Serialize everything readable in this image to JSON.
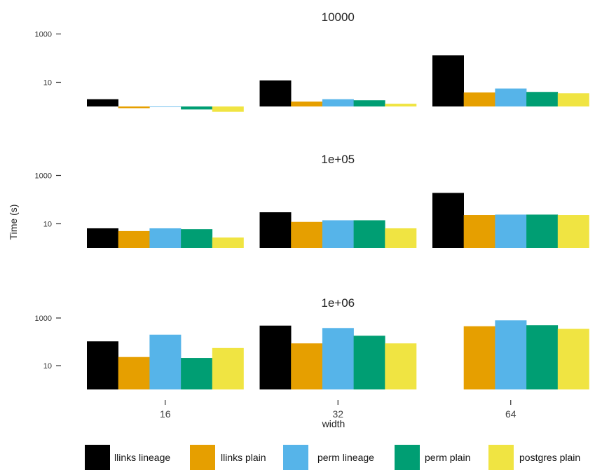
{
  "chart_data": {
    "type": "bar",
    "xlabel": "width",
    "ylabel": "Time (s)",
    "y_scale": "log10",
    "y_ticks": [
      {
        "value": 10,
        "label": "10"
      },
      {
        "value": 1000,
        "label": "1000"
      }
    ],
    "baseline": 1,
    "categories": [
      "16",
      "32",
      "64"
    ],
    "colors": {
      "llinks lineage": "#000000",
      "llinks plain": "#E69F00",
      "perm lineage": "#56B4E9",
      "perm plain": "#009E73",
      "postgres plain": "#F0E442"
    },
    "legend": [
      "llinks lineage",
      "llinks plain",
      "perm lineage",
      "perm plain",
      "postgres plain"
    ],
    "legend_position": "bottom",
    "grid": false,
    "panels": [
      {
        "title": "10000",
        "series": [
          {
            "name": "llinks lineage",
            "values": [
              2.0,
              12,
              130
            ]
          },
          {
            "name": "llinks plain",
            "values": [
              0.85,
              1.6,
              3.8
            ]
          },
          {
            "name": "perm lineage",
            "values": [
              0.95,
              2.0,
              5.5
            ]
          },
          {
            "name": "perm plain",
            "values": [
              0.75,
              1.8,
              4.0
            ]
          },
          {
            "name": "postgres plain",
            "values": [
              0.6,
              1.3,
              3.5
            ]
          }
        ]
      },
      {
        "title": "1e+05",
        "series": [
          {
            "name": "llinks lineage",
            "values": [
              6.5,
              30,
              190
            ]
          },
          {
            "name": "llinks plain",
            "values": [
              5.0,
              12,
              23
            ]
          },
          {
            "name": "perm lineage",
            "values": [
              6.5,
              14,
              24
            ]
          },
          {
            "name": "perm plain",
            "values": [
              6.0,
              14,
              24
            ]
          },
          {
            "name": "postgres plain",
            "values": [
              2.7,
              6.5,
              23
            ]
          }
        ]
      },
      {
        "title": "1e+06",
        "series": [
          {
            "name": "llinks lineage",
            "values": [
              105,
              480,
              null
            ]
          },
          {
            "name": "llinks plain",
            "values": [
              23,
              86,
              450
            ]
          },
          {
            "name": "perm lineage",
            "values": [
              200,
              380,
              800
            ]
          },
          {
            "name": "perm plain",
            "values": [
              21,
              180,
              500
            ]
          },
          {
            "name": "postgres plain",
            "values": [
              55,
              86,
              350
            ]
          }
        ]
      }
    ]
  }
}
